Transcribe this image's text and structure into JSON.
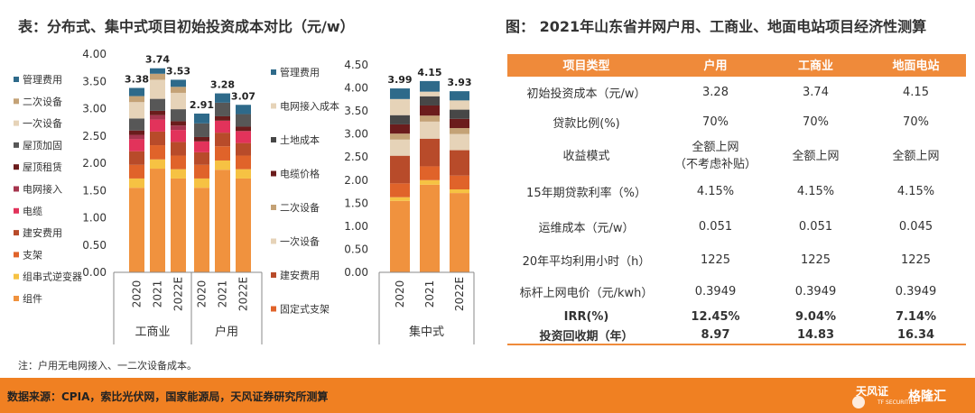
{
  "left_title": "表：分布式、集中式项目初始投资成本对比（元/w）",
  "right_title": "图：  2021年山东省并网户用、工商业、地面电站项目经济性测算",
  "note": "注：户用无电网接入、一二次设备成本。",
  "source": "数据来源：CPIA，索比光伏网，国家能源局，天风证券研究所测算",
  "logo_text": "天风证",
  "logo_sub": "TF SECURITIES",
  "logo2_text": "格隆汇",
  "colors": {
    "组件": "#f0923e",
    "组串式逆变器": "#f6c243",
    "支架": "#e0632a",
    "固定式支架": "#e0632a",
    "建安费用": "#b84b2a",
    "电缆": "#e2335b",
    "电网接入": "#a6354e",
    "屋顶租赁": "#6b1c1c",
    "电缆价格": "#6b1c1c",
    "屋顶加固": "#575757",
    "土地成本": "#474747",
    "一次设备": "#e6d3b8",
    "二次设备": "#c4a276",
    "电网接入成本": "#e6d3b8",
    "管理费用": "#2e6a8a"
  },
  "chart_data": [
    {
      "type": "bar",
      "stacked": true,
      "ylim": [
        0,
        4.0
      ],
      "yticks": [
        "4.00",
        "3.50",
        "3.00",
        "2.50",
        "2.00",
        "1.50",
        "1.00",
        "0.50",
        "0.00"
      ],
      "legend": [
        "管理费用",
        "二次设备",
        "一次设备",
        "屋顶加固",
        "屋顶租赁",
        "电网接入",
        "电缆",
        "建安费用",
        "支架",
        "组串式逆变器",
        "组件"
      ],
      "categories": [
        "2020",
        "2021",
        "2022E",
        "2020",
        "2021",
        "2022E"
      ],
      "groups": [
        {
          "name": "工商业",
          "count": 3
        },
        {
          "name": "户用",
          "count": 3
        }
      ],
      "totals": [
        "3.38",
        "3.74",
        "3.53",
        "2.91",
        "3.28",
        "3.07"
      ],
      "series": [
        {
          "name": "组件",
          "values": [
            1.55,
            1.9,
            1.72,
            1.55,
            1.88,
            1.72
          ]
        },
        {
          "name": "组串式逆变器",
          "values": [
            0.17,
            0.17,
            0.17,
            0.17,
            0.17,
            0.17
          ]
        },
        {
          "name": "支架",
          "values": [
            0.25,
            0.26,
            0.25,
            0.25,
            0.26,
            0.25
          ]
        },
        {
          "name": "建安费用",
          "values": [
            0.25,
            0.25,
            0.25,
            0.23,
            0.25,
            0.23
          ]
        },
        {
          "name": "电缆",
          "values": [
            0.22,
            0.22,
            0.22,
            0.2,
            0.22,
            0.22
          ]
        },
        {
          "name": "电网接入",
          "values": [
            0.08,
            0.08,
            0.08,
            0.0,
            0.0,
            0.0
          ]
        },
        {
          "name": "屋顶租赁",
          "values": [
            0.08,
            0.08,
            0.08,
            0.08,
            0.08,
            0.08
          ]
        },
        {
          "name": "屋顶加固",
          "values": [
            0.22,
            0.22,
            0.22,
            0.25,
            0.25,
            0.23
          ]
        },
        {
          "name": "一次设备",
          "values": [
            0.3,
            0.35,
            0.3,
            0.0,
            0.0,
            0.0
          ]
        },
        {
          "name": "二次设备",
          "values": [
            0.11,
            0.11,
            0.11,
            0.0,
            0.0,
            0.0
          ]
        },
        {
          "name": "管理费用",
          "values": [
            0.15,
            0.1,
            0.13,
            0.18,
            0.17,
            0.17
          ]
        }
      ]
    },
    {
      "type": "bar",
      "stacked": true,
      "ylim": [
        0,
        4.5
      ],
      "yticks": [
        "4.50",
        "4.00",
        "3.50",
        "3.00",
        "2.50",
        "2.00",
        "1.50",
        "1.00",
        "0.50",
        "0.00"
      ],
      "legend": [
        "管理费用",
        "电网接入成本",
        "土地成本",
        "电缆价格",
        "二次设备",
        "一次设备",
        "建安费用",
        "固定式支架"
      ],
      "categories": [
        "2020",
        "2021",
        "2022E"
      ],
      "groups": [
        {
          "name": "集中式",
          "count": 3
        }
      ],
      "totals": [
        "3.99",
        "4.15",
        "3.93"
      ],
      "series": [
        {
          "name": "组件",
          "values": [
            1.55,
            1.9,
            1.72
          ]
        },
        {
          "name": "组串式逆变器",
          "values": [
            0.08,
            0.1,
            0.08
          ]
        },
        {
          "name": "固定式支架",
          "values": [
            0.3,
            0.3,
            0.3
          ]
        },
        {
          "name": "建安费用",
          "values": [
            0.6,
            0.6,
            0.55
          ]
        },
        {
          "name": "一次设备",
          "values": [
            0.35,
            0.37,
            0.35
          ]
        },
        {
          "name": "二次设备",
          "values": [
            0.13,
            0.13,
            0.13
          ]
        },
        {
          "name": "电缆价格",
          "values": [
            0.2,
            0.22,
            0.2
          ]
        },
        {
          "name": "土地成本",
          "values": [
            0.2,
            0.2,
            0.2
          ]
        },
        {
          "name": "电网接入成本",
          "values": [
            0.35,
            0.1,
            0.2
          ]
        },
        {
          "name": "管理费用",
          "values": [
            0.23,
            0.23,
            0.2
          ]
        }
      ]
    }
  ],
  "table": {
    "headers": [
      "项目类型",
      "户用",
      "工商业",
      "地面电站"
    ],
    "rows": [
      {
        "label": "初始投资成本（元/w）",
        "cells": [
          "3.28",
          "3.74",
          "4.15"
        ],
        "bold": false
      },
      {
        "label": "贷款比例(%)",
        "cells": [
          "70%",
          "70%",
          "70%"
        ],
        "bold": false
      },
      {
        "label": "收益模式",
        "cells": [
          "全额上网\n（不考虑补贴）",
          "全额上网",
          "全额上网"
        ],
        "bold": false
      },
      {
        "label": "15年期贷款利率（%）",
        "cells": [
          "4.15%",
          "4.15%",
          "4.15%"
        ],
        "bold": false
      },
      {
        "label": "运维成本（元/w）",
        "cells": [
          "0.051",
          "0.051",
          "0.045"
        ],
        "bold": false
      },
      {
        "label": "20年平均利用小时（h）",
        "cells": [
          "1225",
          "1225",
          "1225"
        ],
        "bold": false
      },
      {
        "label": "标杆上网电价（元/kwh）",
        "cells": [
          "0.3949",
          "0.3949",
          "0.3949"
        ],
        "bold": false
      },
      {
        "label": "IRR(%)",
        "cells": [
          "12.45%",
          "9.04%",
          "7.14%"
        ],
        "bold": true
      },
      {
        "label": "投资回收期（年）",
        "cells": [
          "8.97",
          "14.83",
          "16.34"
        ],
        "bold": true
      }
    ]
  }
}
